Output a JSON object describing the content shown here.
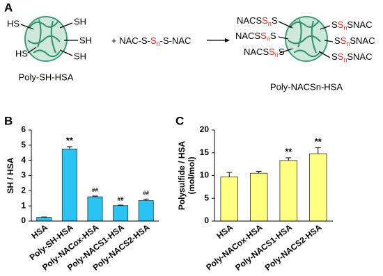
{
  "scheme": {
    "panel": "A",
    "thiol_labels": [
      "HS",
      "SH",
      "SH",
      "HS",
      "SH"
    ],
    "left_caption": "Poly-SH-HSA",
    "reagent": [
      "+ NAC-S-",
      "S",
      "n",
      "-S-NAC"
    ],
    "product_left": [
      "NACS",
      "S",
      "n",
      "S"
    ],
    "product_right": [
      "S",
      "S",
      "n",
      "SNAC"
    ],
    "right_caption": "Poly-NACSn-HSA"
  },
  "chart_data": [
    {
      "type": "bar",
      "panel": "B",
      "ylabel": "SH / HSA",
      "categories": [
        "HSA",
        "Poly-SH-HSA",
        "Poly-NACox-HSA",
        "Poly-NACS1-HSA",
        "Poly-NACS2-HSA"
      ],
      "values": [
        0.25,
        4.75,
        1.6,
        1.02,
        1.35
      ],
      "errors": [
        0.02,
        0.15,
        0.05,
        0.03,
        0.1
      ],
      "annotations": [
        null,
        "**",
        "##",
        "##",
        "##"
      ],
      "color": "#29c4f4",
      "ylim": [
        0,
        6
      ],
      "yticks": [
        0,
        1,
        2,
        3,
        4,
        5,
        6
      ]
    },
    {
      "type": "bar",
      "panel": "C",
      "ylabel": [
        "Polysulfide / HSA",
        "(mol/mol)"
      ],
      "categories": [
        "HSA",
        "Poly-NACox-HSA",
        "Poly-NACS1-HSA",
        "Poly-NACS2-HSA"
      ],
      "values": [
        9.7,
        10.5,
        13.3,
        14.8
      ],
      "errors": [
        1.0,
        0.4,
        0.6,
        1.3
      ],
      "annotations": [
        null,
        null,
        "**",
        "**"
      ],
      "color": "#ffff80",
      "ylim": [
        0,
        20
      ],
      "yticks": [
        0,
        5,
        10,
        15,
        20
      ]
    }
  ]
}
